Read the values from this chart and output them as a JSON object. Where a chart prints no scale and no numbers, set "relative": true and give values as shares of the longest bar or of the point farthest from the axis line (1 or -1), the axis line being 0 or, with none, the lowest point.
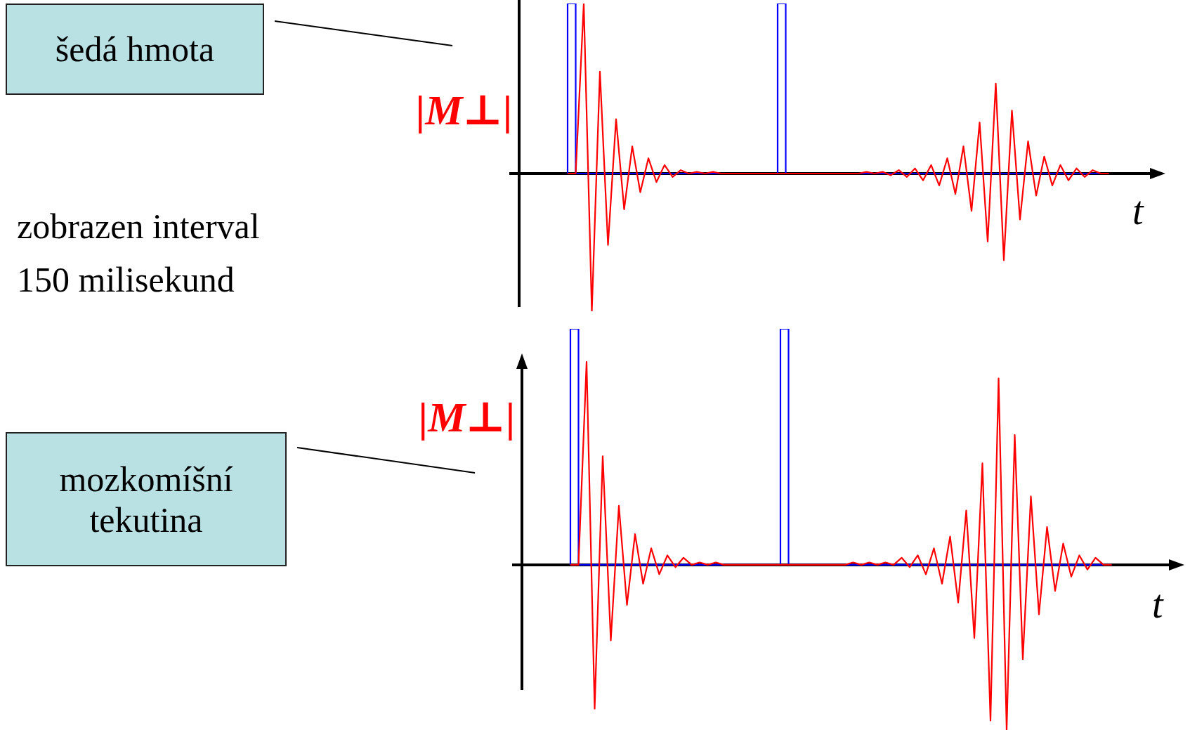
{
  "chart_data": [
    {
      "type": "line",
      "relative": true,
      "ylabel": "|M⊥|",
      "xlabel": "t",
      "marker": "none",
      "annotations": [
        "šedá hmota",
        "zobrazen interval 150 milisekund"
      ],
      "categories": [
        null,
        null,
        null,
        null,
        null,
        null,
        null,
        null,
        null,
        null,
        null,
        null,
        null,
        null,
        null,
        null,
        null,
        null,
        null,
        null,
        null,
        null,
        null,
        null,
        null,
        null,
        null,
        null,
        null,
        null,
        null,
        null,
        null,
        null,
        null,
        null,
        null,
        null,
        null,
        null,
        null,
        null,
        null,
        null,
        null,
        null,
        null,
        null,
        null,
        null,
        null,
        null,
        null,
        null,
        null,
        null,
        null,
        null,
        null,
        null,
        null,
        null,
        null,
        null,
        null,
        null,
        null,
        null,
        null,
        null,
        null,
        null,
        null,
        null,
        null,
        null,
        null,
        null,
        null,
        null,
        null
      ],
      "series": [
        {
          "type": "line",
          "color": "#ff0000",
          "values": [
            null,
            null,
            null,
            null,
            null,
            null,
            0,
            0,
            1,
            -0.81,
            0.6,
            -0.42,
            0.32,
            -0.21,
            0.16,
            -0.11,
            0.09,
            -0.05,
            0.05,
            -0.02,
            0.02,
            0,
            0.01,
            0,
            0.01,
            0,
            0,
            0,
            0,
            0,
            0,
            0,
            0,
            0,
            0,
            0,
            0,
            0,
            0,
            0,
            0,
            0,
            0,
            0.01,
            0,
            0.01,
            -0.01,
            0.02,
            -0.02,
            0.03,
            -0.04,
            0.05,
            -0.07,
            0.09,
            -0.12,
            0.16,
            -0.22,
            0.3,
            -0.4,
            0.53,
            -0.51,
            0.37,
            -0.27,
            0.19,
            -0.13,
            0.1,
            -0.07,
            0.05,
            -0.04,
            0.03,
            -0.02,
            0.02,
            0,
            0,
            null,
            null,
            null,
            null,
            null,
            null,
            null
          ]
        },
        {
          "type": "step",
          "color": "#0000ff",
          "values": [
            null,
            null,
            null,
            null,
            null,
            null,
            0,
            1,
            0,
            0,
            0,
            0,
            0,
            0,
            0,
            0,
            0,
            0,
            0,
            0,
            0,
            0,
            0,
            0,
            0,
            0,
            0,
            0,
            0,
            0,
            0,
            0,
            0,
            1,
            0,
            0,
            0,
            0,
            0,
            0,
            0,
            0,
            0,
            0,
            0,
            0,
            0,
            0,
            0,
            0,
            0,
            0,
            0,
            0,
            0,
            0,
            0,
            0,
            0,
            0,
            0,
            0,
            0,
            0,
            0,
            0,
            0,
            0,
            0,
            0,
            0,
            0,
            0,
            0,
            null,
            null,
            null,
            null,
            null,
            null,
            null
          ]
        }
      ]
    },
    {
      "type": "line",
      "relative": true,
      "ylabel": "|M⊥|",
      "xlabel": "t",
      "marker": "none",
      "annotations": [
        "mozkomíšní tekutina"
      ],
      "categories": [
        null,
        null,
        null,
        null,
        null,
        null,
        null,
        null,
        null,
        null,
        null,
        null,
        null,
        null,
        null,
        null,
        null,
        null,
        null,
        null,
        null,
        null,
        null,
        null,
        null,
        null,
        null,
        null,
        null,
        null,
        null,
        null,
        null,
        null,
        null,
        null,
        null,
        null,
        null,
        null,
        null,
        null,
        null,
        null,
        null,
        null,
        null,
        null,
        null,
        null,
        null,
        null,
        null,
        null,
        null,
        null,
        null,
        null,
        null,
        null,
        null,
        null,
        null,
        null,
        null,
        null,
        null,
        null,
        null,
        null,
        null,
        null,
        null,
        null,
        null,
        null,
        null,
        null,
        null,
        null,
        null,
        null,
        null
      ],
      "series": [
        {
          "type": "line",
          "color": "#ff0000",
          "values": [
            null,
            null,
            null,
            null,
            null,
            null,
            0,
            0,
            0.86,
            -0.61,
            0.46,
            -0.32,
            0.25,
            -0.17,
            0.13,
            -0.08,
            0.07,
            -0.04,
            0.04,
            -0.01,
            0.03,
            0,
            0.01,
            0,
            0.01,
            0,
            0,
            0,
            0,
            0,
            0,
            0,
            0,
            0,
            0,
            0,
            0,
            0,
            0,
            0,
            0,
            0.01,
            0,
            0.01,
            0,
            0.01,
            0,
            0.03,
            -0.01,
            0.04,
            -0.04,
            0.07,
            -0.08,
            0.12,
            -0.16,
            0.23,
            -0.31,
            0.43,
            -0.66,
            0.79,
            -0.7,
            0.55,
            -0.4,
            0.29,
            -0.21,
            0.16,
            -0.11,
            0.09,
            -0.05,
            0.04,
            -0.02,
            0.03,
            0,
            0,
            null,
            null,
            null,
            null,
            null,
            null,
            null,
            null,
            null
          ]
        },
        {
          "type": "step",
          "color": "#0000ff",
          "values": [
            null,
            null,
            null,
            null,
            null,
            null,
            0,
            1,
            0,
            0,
            0,
            0,
            0,
            0,
            0,
            0,
            0,
            0,
            0,
            0,
            0,
            0,
            0,
            0,
            0,
            0,
            0,
            0,
            0,
            0,
            0,
            0,
            0,
            1,
            0,
            0,
            0,
            0,
            0,
            0,
            0,
            0,
            0,
            0,
            0,
            0,
            0,
            0,
            0,
            0,
            0,
            0,
            0,
            0,
            0,
            0,
            0,
            0,
            0,
            0,
            0,
            0,
            0,
            0,
            0,
            0,
            0,
            0,
            0,
            0,
            0,
            0,
            0,
            0,
            null,
            null,
            null,
            null,
            null,
            null,
            null,
            null,
            null
          ]
        }
      ]
    }
  ]
}
